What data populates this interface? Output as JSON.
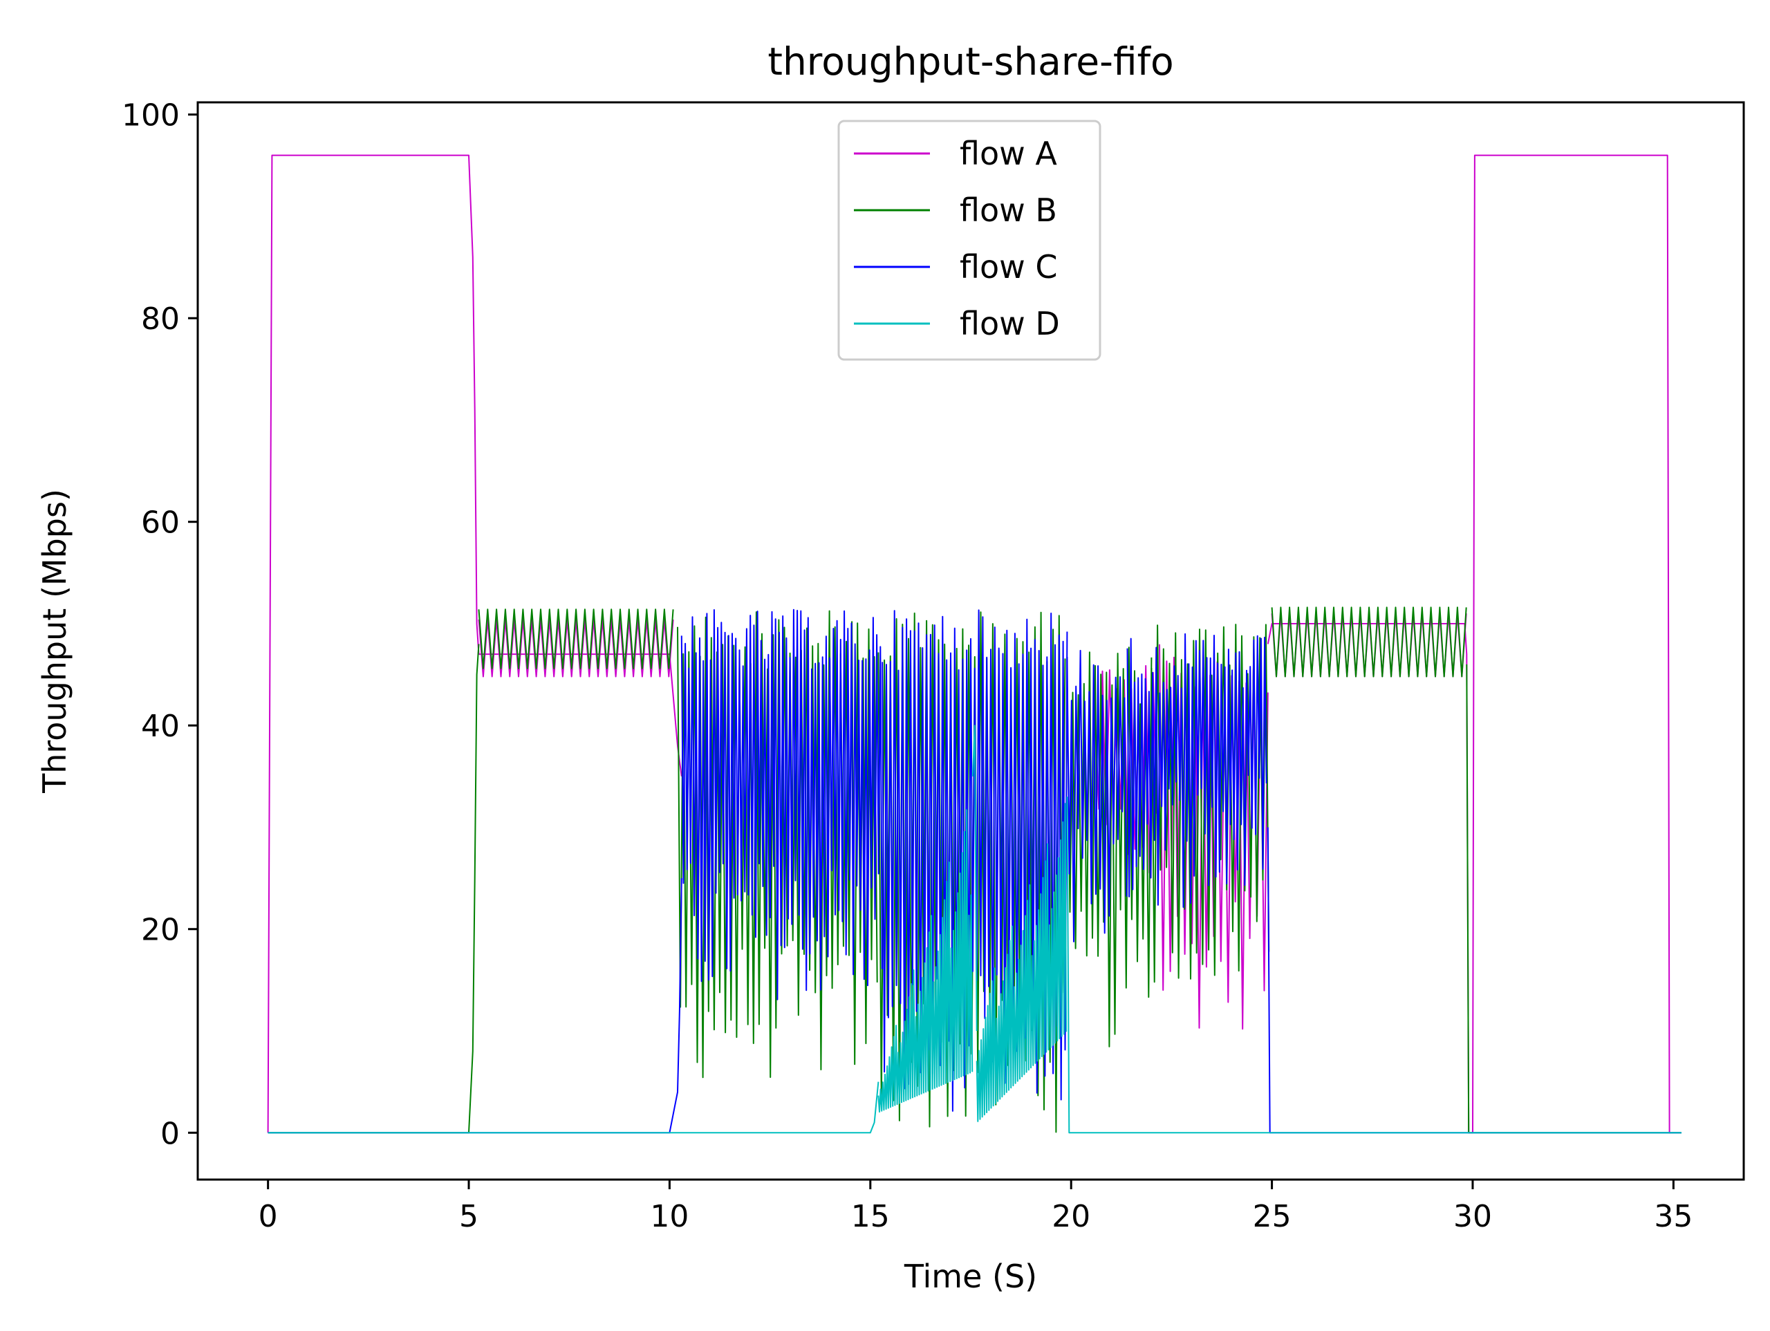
{
  "chart_data": {
    "type": "line",
    "title": "throughput-share-fifo",
    "xlabel": "Time (S)",
    "ylabel": "Throughput (Mbps)",
    "xlim": [
      -1.75,
      36.75
    ],
    "ylim": [
      -4.6,
      101.2
    ],
    "xticks": [
      0,
      5,
      10,
      15,
      20,
      25,
      30,
      35
    ],
    "yticks": [
      0,
      20,
      40,
      60,
      80,
      100
    ],
    "grid": false,
    "legend_position": "top-center",
    "series": [
      {
        "name": "flow A",
        "color": "#cc00cc",
        "segments": [
          {
            "kind": "line",
            "points": [
              [
                0,
                0
              ],
              [
                0.1,
                96
              ],
              [
                5.0,
                96
              ],
              [
                5.1,
                86
              ],
              [
                5.15,
                71
              ],
              [
                5.2,
                50
              ],
              [
                5.25,
                47
              ],
              [
                10.0,
                47
              ],
              [
                10.2,
                38
              ],
              [
                10.3,
                35
              ]
            ]
          },
          {
            "kind": "osc",
            "start": 5.25,
            "end": 10.1,
            "period": 0.22,
            "lo": 44.8,
            "hi": 50.4
          },
          {
            "kind": "osc",
            "start": 20.6,
            "end": 22.2,
            "period": 0.18,
            "lo": 22,
            "hi": 46
          },
          {
            "kind": "osc",
            "start": 22.2,
            "end": 24.9,
            "period": 0.18,
            "lo": 10,
            "hi": 48
          },
          {
            "kind": "line",
            "points": [
              [
                24.9,
                48
              ],
              [
                25.0,
                50
              ],
              [
                29.8,
                50
              ],
              [
                29.85,
                47
              ],
              [
                29.9,
                0
              ],
              [
                30.0,
                0
              ],
              [
                30.05,
                96
              ],
              [
                34.85,
                96
              ],
              [
                34.9,
                0
              ],
              [
                35.2,
                0
              ]
            ]
          },
          {
            "kind": "osc",
            "start": 25.0,
            "end": 29.85,
            "period": 0.22,
            "lo": 44.8,
            "hi": 51
          }
        ]
      },
      {
        "name": "flow B",
        "color": "#008000",
        "segments": [
          {
            "kind": "line",
            "points": [
              [
                0,
                0
              ],
              [
                5.0,
                0
              ],
              [
                5.1,
                8
              ],
              [
                5.15,
                25
              ],
              [
                5.2,
                45
              ],
              [
                5.25,
                48
              ]
            ]
          },
          {
            "kind": "osc",
            "start": 5.25,
            "end": 10.1,
            "period": 0.22,
            "lo": 45.6,
            "hi": 51.4
          },
          {
            "kind": "osc",
            "start": 10.2,
            "end": 15.2,
            "period": 0.14,
            "lo": 5,
            "hi": 51.4
          },
          {
            "kind": "osc",
            "start": 15.2,
            "end": 19.9,
            "period": 0.15,
            "lo": 0,
            "hi": 51.4
          },
          {
            "kind": "osc",
            "start": 19.9,
            "end": 22.0,
            "period": 0.14,
            "lo": 8,
            "hi": 48
          },
          {
            "kind": "osc",
            "start": 22.0,
            "end": 24.95,
            "period": 0.15,
            "lo": 14,
            "hi": 50
          },
          {
            "kind": "osc",
            "start": 25.0,
            "end": 29.85,
            "period": 0.22,
            "lo": 44.8,
            "hi": 51.6
          },
          {
            "kind": "line",
            "points": [
              [
                29.85,
                46
              ],
              [
                29.9,
                0
              ],
              [
                35.2,
                0
              ]
            ]
          }
        ]
      },
      {
        "name": "flow C",
        "color": "#0000ff",
        "segments": [
          {
            "kind": "line",
            "points": [
              [
                0,
                0
              ],
              [
                10.0,
                0
              ],
              [
                10.1,
                2
              ],
              [
                10.2,
                4
              ],
              [
                10.25,
                12
              ],
              [
                10.3,
                25
              ]
            ]
          },
          {
            "kind": "osc",
            "start": 10.3,
            "end": 15.3,
            "period": 0.09,
            "lo": 13,
            "hi": 51.4
          },
          {
            "kind": "osc",
            "start": 15.3,
            "end": 19.9,
            "period": 0.1,
            "lo": 2,
            "hi": 51.4
          },
          {
            "kind": "osc",
            "start": 19.9,
            "end": 21.4,
            "period": 0.11,
            "lo": 18,
            "hi": 48
          },
          {
            "kind": "osc",
            "start": 21.4,
            "end": 24.9,
            "period": 0.09,
            "lo": 22,
            "hi": 49
          },
          {
            "kind": "line",
            "points": [
              [
                24.9,
                30
              ],
              [
                24.95,
                0
              ],
              [
                35.2,
                0
              ]
            ]
          }
        ]
      },
      {
        "name": "flow D",
        "color": "#00bfbf",
        "segments": [
          {
            "kind": "line",
            "points": [
              [
                0,
                0
              ],
              [
                15.0,
                0
              ],
              [
                15.1,
                1
              ],
              [
                15.2,
                5
              ]
            ]
          },
          {
            "kind": "ramp",
            "start": 15.2,
            "end": 17.55,
            "period": 0.055,
            "lo_start": 2,
            "lo_end": 6,
            "hi_start": 5,
            "hi_end": 35
          },
          {
            "kind": "line",
            "points": [
              [
                17.55,
                35
              ],
              [
                17.6,
                40
              ],
              [
                17.65,
                10
              ]
            ]
          },
          {
            "kind": "ramp",
            "start": 17.65,
            "end": 19.9,
            "period": 0.055,
            "lo_start": 1,
            "lo_end": 10,
            "hi_start": 12,
            "hi_end": 34
          },
          {
            "kind": "line",
            "points": [
              [
                19.9,
                33
              ],
              [
                19.95,
                0
              ],
              [
                35.2,
                0
              ]
            ]
          }
        ]
      }
    ]
  }
}
